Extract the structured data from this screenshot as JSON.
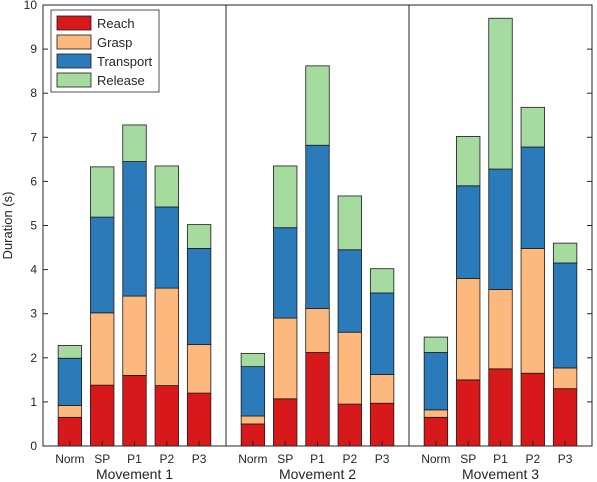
{
  "chart_data": {
    "type": "bar",
    "stacked": true,
    "ylabel": "Duration (s)",
    "ylim": [
      0,
      10
    ],
    "yticks": [
      0,
      1,
      2,
      3,
      4,
      5,
      6,
      7,
      8,
      9,
      10
    ],
    "legend_position": "top-left",
    "categories": [
      "Norm",
      "SP",
      "P1",
      "P2",
      "P3"
    ],
    "groups": [
      {
        "label": "Movement 1",
        "series": [
          {
            "name": "Reach",
            "values": [
              0.65,
              1.38,
              1.6,
              1.37,
              1.2
            ]
          },
          {
            "name": "Grasp",
            "values": [
              0.27,
              1.64,
              1.8,
              2.21,
              1.1
            ]
          },
          {
            "name": "Transport",
            "values": [
              1.07,
              2.17,
              3.05,
              1.84,
              2.18
            ]
          },
          {
            "name": "Release",
            "values": [
              0.29,
              1.14,
              0.83,
              0.93,
              0.54
            ]
          }
        ]
      },
      {
        "label": "Movement 2",
        "series": [
          {
            "name": "Reach",
            "values": [
              0.5,
              1.07,
              2.12,
              0.95,
              0.97
            ]
          },
          {
            "name": "Grasp",
            "values": [
              0.18,
              1.83,
              1.0,
              1.63,
              0.65
            ]
          },
          {
            "name": "Transport",
            "values": [
              1.12,
              2.05,
              3.7,
              1.87,
              1.85
            ]
          },
          {
            "name": "Release",
            "values": [
              0.3,
              1.4,
              1.8,
              1.22,
              0.55
            ]
          }
        ]
      },
      {
        "label": "Movement 3",
        "series": [
          {
            "name": "Reach",
            "values": [
              0.65,
              1.5,
              1.75,
              1.65,
              1.3
            ]
          },
          {
            "name": "Grasp",
            "values": [
              0.17,
              2.3,
              1.8,
              2.83,
              0.47
            ]
          },
          {
            "name": "Transport",
            "values": [
              1.3,
              2.1,
              2.73,
              2.3,
              2.38
            ]
          },
          {
            "name": "Release",
            "values": [
              0.35,
              1.12,
              3.42,
              0.9,
              0.45
            ]
          }
        ]
      }
    ],
    "colors": {
      "Reach": "#d7191c",
      "Grasp": "#fdb97d",
      "Transport": "#2b7bba",
      "Release": "#a6dba0"
    }
  }
}
